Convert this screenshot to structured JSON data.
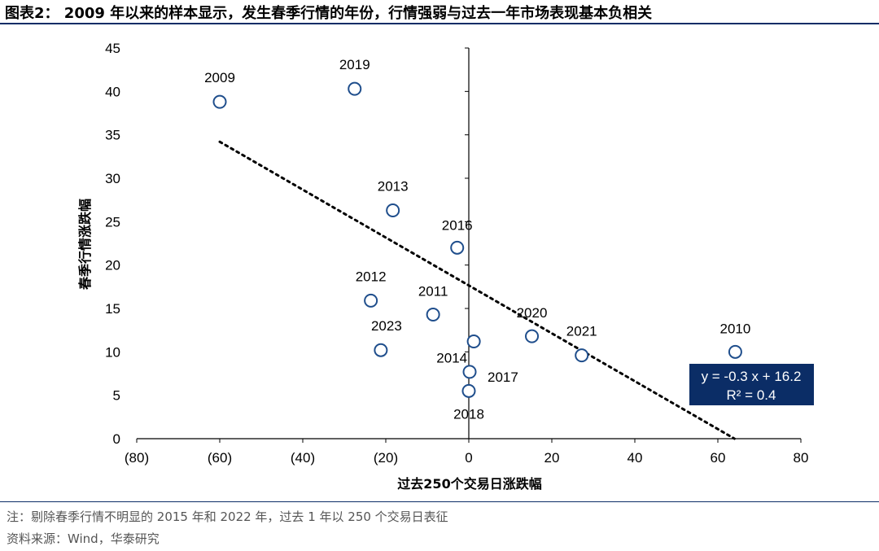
{
  "title": "图表2： 2009 年以来的样本显示，发生春季行情的年份，行情强弱与过去一年市场表现基本负相关",
  "notes": {
    "note": "注：剔除春季行情不明显的 2015 年和 2022 年，过去 1 年以 250 个交易日表征",
    "source": "资料来源：Wind，华泰研究"
  },
  "colors": {
    "accent": "#0b2d66",
    "marker": "#1f4e8c"
  },
  "chart_data": {
    "type": "scatter",
    "xlabel": "过去250个交易日涨跌幅",
    "ylabel": "春季行情涨跌幅",
    "xlim": [
      -80,
      80
    ],
    "ylim": [
      0,
      45
    ],
    "xticks": [
      -80,
      -60,
      -40,
      -20,
      0,
      20,
      40,
      60,
      80
    ],
    "xtick_labels": [
      "(80)",
      "(60)",
      "(40)",
      "(20)",
      "0",
      "20",
      "40",
      "60",
      "80"
    ],
    "yticks": [
      0,
      5,
      10,
      15,
      20,
      25,
      30,
      35,
      40,
      45
    ],
    "ytick_labels": [
      "0",
      "5",
      "10",
      "15",
      "20",
      "25",
      "30",
      "35",
      "40",
      "45"
    ],
    "points": [
      {
        "label": "2009",
        "x": -60,
        "y": 38.8
      },
      {
        "label": "2019",
        "x": -27.5,
        "y": 40.3
      },
      {
        "label": "2013",
        "x": -18.3,
        "y": 26.3
      },
      {
        "label": "2016",
        "x": -2.8,
        "y": 22.0
      },
      {
        "label": "2012",
        "x": -23.6,
        "y": 15.9
      },
      {
        "label": "2011",
        "x": -8.6,
        "y": 14.3
      },
      {
        "label": "2023",
        "x": -21.2,
        "y": 10.2
      },
      {
        "label": "2014",
        "x": 1.2,
        "y": 11.2
      },
      {
        "label": "2017",
        "x": 0.2,
        "y": 7.7
      },
      {
        "label": "2018",
        "x": 0,
        "y": 5.5
      },
      {
        "label": "2020",
        "x": 15.2,
        "y": 11.8
      },
      {
        "label": "2021",
        "x": 27.2,
        "y": 9.6
      },
      {
        "label": "2010",
        "x": 64.2,
        "y": 10.0
      }
    ],
    "trendline": {
      "slope": -0.3,
      "intercept": 16.2,
      "x_range": [
        -60,
        64
      ]
    },
    "equation": "y = -0.3 x + 16.2",
    "r_squared": "R² = 0.4"
  }
}
